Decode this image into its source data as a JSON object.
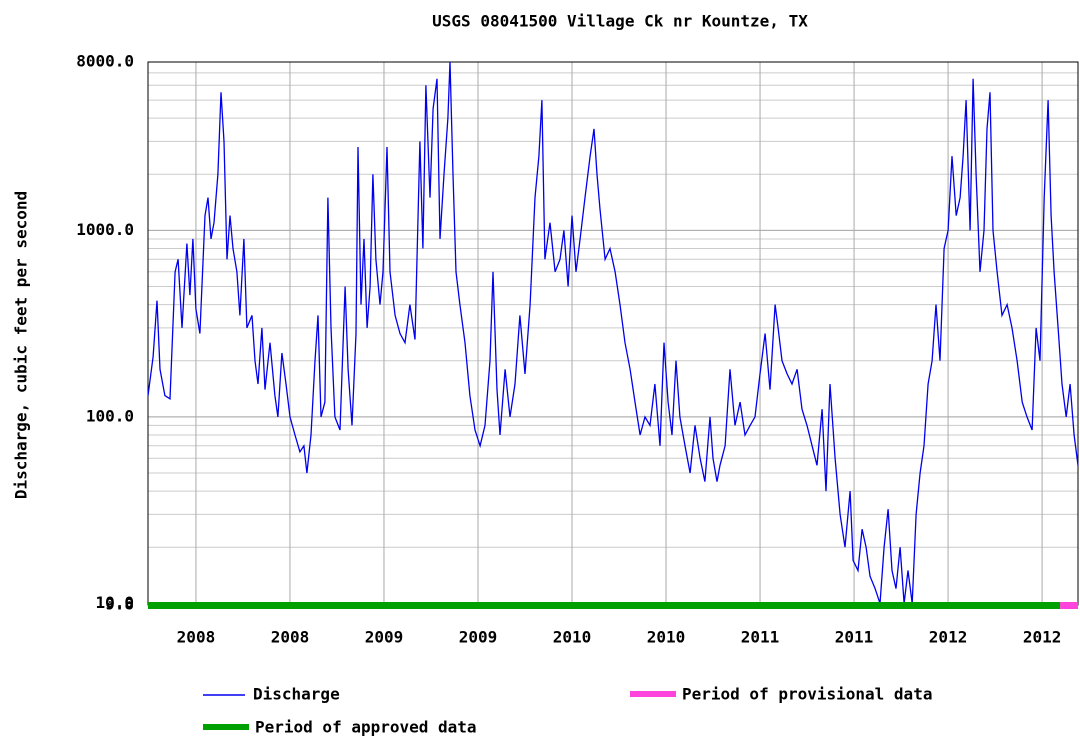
{
  "chart_data": {
    "type": "line",
    "title": "USGS 08041500 Village Ck nr Kountze, TX",
    "y_label": "Discharge, cubic feet per second",
    "log_y": true,
    "grid": true,
    "ylim": [
      9.8,
      8000
    ],
    "yticks": [
      {
        "value": 9.8,
        "label": "9.8"
      },
      {
        "value": 10,
        "label": "10.0"
      },
      {
        "value": 100,
        "label": "100.0"
      },
      {
        "value": 1000,
        "label": "1000.0"
      },
      {
        "value": 8000,
        "label": "8000.0"
      }
    ],
    "xlim": [
      2007.745,
      2012.691
    ],
    "xticks": [
      {
        "value": 2008.0,
        "label": "2008"
      },
      {
        "value": 2008.5,
        "label": "2008"
      },
      {
        "value": 2009.0,
        "label": "2009"
      },
      {
        "value": 2009.5,
        "label": "2009"
      },
      {
        "value": 2010.0,
        "label": "2010"
      },
      {
        "value": 2010.5,
        "label": "2010"
      },
      {
        "value": 2011.0,
        "label": "2011"
      },
      {
        "value": 2011.5,
        "label": "2011"
      },
      {
        "value": 2012.0,
        "label": "2012"
      },
      {
        "value": 2012.5,
        "label": "2012"
      }
    ],
    "series": [
      {
        "name": "Discharge",
        "color": "#0000ee",
        "x": [
          2007.745,
          2007.772,
          2007.793,
          2007.809,
          2007.835,
          2007.862,
          2007.889,
          2007.905,
          2007.926,
          2007.952,
          2007.968,
          2007.984,
          2008.0,
          2008.021,
          2008.048,
          2008.064,
          2008.08,
          2008.096,
          2008.117,
          2008.133,
          2008.149,
          2008.165,
          2008.181,
          2008.197,
          2008.218,
          2008.234,
          2008.255,
          2008.271,
          2008.298,
          2008.314,
          2008.33,
          2008.351,
          2008.367,
          2008.394,
          2008.42,
          2008.436,
          2008.457,
          2008.479,
          2008.5,
          2008.527,
          2008.553,
          2008.574,
          2008.59,
          2008.612,
          2008.633,
          2008.649,
          2008.665,
          2008.686,
          2008.702,
          2008.718,
          2008.739,
          2008.766,
          2008.793,
          2008.809,
          2008.83,
          2008.851,
          2008.862,
          2008.878,
          2008.894,
          2008.91,
          2008.926,
          2008.941,
          2008.957,
          2008.979,
          2008.995,
          2009.016,
          2009.032,
          2009.059,
          2009.085,
          2009.112,
          2009.138,
          2009.165,
          2009.191,
          2009.207,
          2009.223,
          2009.245,
          2009.261,
          2009.282,
          2009.298,
          2009.319,
          2009.34,
          2009.351,
          2009.367,
          2009.383,
          2009.404,
          2009.431,
          2009.457,
          2009.484,
          2009.511,
          2009.537,
          2009.564,
          2009.58,
          2009.601,
          2009.617,
          2009.644,
          2009.67,
          2009.697,
          2009.723,
          2009.75,
          2009.777,
          2009.803,
          2009.824,
          2009.84,
          2009.856,
          2009.883,
          2009.91,
          2009.936,
          2009.957,
          2009.979,
          2010.0,
          2010.021,
          2010.043,
          2010.069,
          2010.096,
          2010.117,
          2010.133,
          2010.149,
          2010.176,
          2010.202,
          2010.229,
          2010.255,
          2010.282,
          2010.309,
          2010.335,
          2010.362,
          2010.388,
          2010.415,
          2010.441,
          2010.468,
          2010.489,
          2010.511,
          2010.532,
          2010.553,
          2010.574,
          2010.601,
          2010.628,
          2010.654,
          2010.681,
          2010.707,
          2010.734,
          2010.75,
          2010.771,
          2010.787,
          2010.814,
          2010.84,
          2010.867,
          2010.894,
          2010.92,
          2010.947,
          2010.973,
          2011.0,
          2011.027,
          2011.053,
          2011.08,
          2011.096,
          2011.117,
          2011.144,
          2011.17,
          2011.197,
          2011.223,
          2011.25,
          2011.277,
          2011.303,
          2011.33,
          2011.351,
          2011.372,
          2011.399,
          2011.426,
          2011.452,
          2011.479,
          2011.495,
          2011.521,
          2011.543,
          2011.564,
          2011.585,
          2011.612,
          2011.638,
          2011.66,
          2011.681,
          2011.702,
          2011.723,
          2011.745,
          2011.766,
          2011.787,
          2011.809,
          2011.83,
          2011.851,
          2011.872,
          2011.894,
          2011.915,
          2011.936,
          2011.957,
          2011.979,
          2012.0,
          2012.021,
          2012.043,
          2012.064,
          2012.08,
          2012.096,
          2012.117,
          2012.133,
          2012.149,
          2012.17,
          2012.191,
          2012.207,
          2012.223,
          2012.239,
          2012.261,
          2012.287,
          2012.314,
          2012.34,
          2012.367,
          2012.394,
          2012.42,
          2012.447,
          2012.468,
          2012.489,
          2012.511,
          2012.532,
          2012.548,
          2012.564,
          2012.585,
          2012.606,
          2012.628,
          2012.649,
          2012.67,
          2012.691
        ],
        "values": [
          130,
          210,
          420,
          180,
          130,
          125,
          600,
          700,
          300,
          850,
          450,
          900,
          380,
          280,
          1200,
          1500,
          900,
          1100,
          2000,
          5500,
          3000,
          700,
          1200,
          800,
          600,
          350,
          900,
          300,
          350,
          200,
          150,
          300,
          140,
          250,
          130,
          100,
          220,
          150,
          100,
          80,
          65,
          70,
          50,
          80,
          200,
          350,
          100,
          120,
          1500,
          300,
          100,
          85,
          500,
          180,
          90,
          280,
          2800,
          400,
          900,
          300,
          500,
          2000,
          700,
          400,
          600,
          2800,
          600,
          350,
          280,
          250,
          400,
          260,
          3000,
          800,
          6000,
          1500,
          4500,
          6500,
          900,
          2000,
          4000,
          8000,
          2000,
          600,
          400,
          250,
          130,
          85,
          70,
          90,
          200,
          600,
          140,
          80,
          180,
          100,
          150,
          350,
          170,
          400,
          1500,
          2500,
          5000,
          700,
          1100,
          600,
          700,
          1000,
          500,
          1200,
          600,
          900,
          1500,
          2500,
          3500,
          2000,
          1300,
          700,
          800,
          600,
          400,
          250,
          180,
          120,
          80,
          100,
          90,
          150,
          70,
          250,
          120,
          80,
          200,
          100,
          70,
          50,
          90,
          60,
          45,
          100,
          60,
          45,
          55,
          70,
          180,
          90,
          120,
          80,
          90,
          100,
          170,
          280,
          140,
          400,
          300,
          200,
          170,
          150,
          180,
          110,
          90,
          70,
          55,
          110,
          40,
          150,
          60,
          30,
          20,
          40,
          17,
          15,
          25,
          20,
          14,
          12,
          10,
          20,
          32,
          15,
          12,
          20,
          10,
          15,
          10,
          30,
          50,
          70,
          150,
          200,
          400,
          200,
          800,
          1000,
          2500,
          1200,
          1500,
          2500,
          5000,
          1000,
          6500,
          2000,
          600,
          1000,
          3500,
          5500,
          1000,
          600,
          350,
          400,
          300,
          200,
          120,
          100,
          85,
          300,
          200,
          1500,
          5000,
          1200,
          600,
          300,
          150,
          100,
          150,
          80,
          55
        ]
      }
    ],
    "periods": [
      {
        "name": "Period of approved data",
        "color": "#00a000",
        "range": [
          2007.745,
          2012.596
        ]
      },
      {
        "name": "Period of provisional data",
        "color": "#ff44dd",
        "range": [
          2012.596,
          2012.691
        ]
      }
    ]
  }
}
